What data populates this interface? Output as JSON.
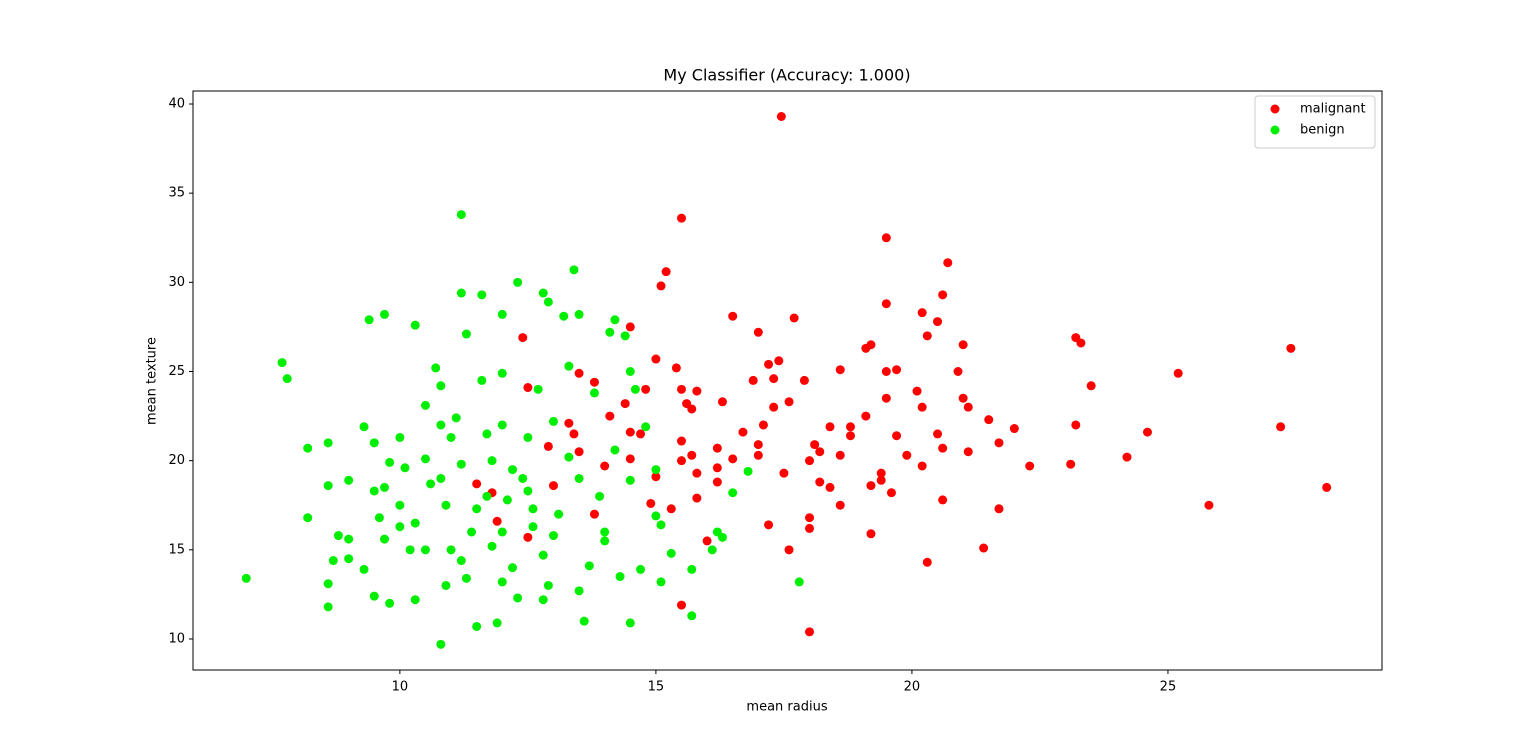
{
  "chart_data": {
    "type": "scatter",
    "title": "My Classifier (Accuracy: 1.000)",
    "x_label": "mean radius",
    "y_label": "mean texture",
    "xlim": [
      5.96,
      29.18
    ],
    "ylim": [
      8.26,
      40.73
    ],
    "xticks": [
      10,
      15,
      20,
      25
    ],
    "yticks": [
      10,
      15,
      20,
      25,
      30,
      35,
      40
    ],
    "legend": "upper right",
    "series": [
      {
        "name": "malignant",
        "color": "#ff0000",
        "x": [
          17.45,
          15.5,
          19.5,
          20.7,
          15.2,
          15.1,
          20.6,
          19.5,
          20.2,
          16.5,
          17.7,
          20.5,
          14.5,
          17.0,
          20.3,
          12.4,
          23.2,
          23.3,
          21.0,
          19.2,
          19.1,
          27.4,
          17.4,
          17.2,
          15.0,
          15.4,
          18.6,
          19.7,
          19.5,
          20.9,
          25.2,
          13.5,
          17.3,
          16.9,
          17.9,
          13.8,
          23.5,
          12.5,
          15.5,
          14.8,
          15.8,
          20.1,
          21.0,
          19.5,
          17.6,
          16.3,
          15.6,
          14.4,
          17.3,
          15.7,
          21.1,
          20.2,
          14.1,
          19.1,
          21.5,
          13.3,
          17.1,
          18.4,
          22.0,
          23.2,
          27.2,
          18.8,
          20.5,
          19.7,
          16.7,
          18.8,
          14.5,
          14.7,
          24.6,
          13.4,
          21.7,
          17.0,
          15.5,
          12.9,
          18.1,
          18.2,
          16.2,
          20.6,
          13.5,
          21.1,
          19.9,
          17.0,
          15.7,
          24.2,
          18.6,
          16.5,
          18.0,
          15.5,
          20.2,
          22.3,
          23.1,
          16.2,
          15.8,
          17.5,
          19.4,
          15.0,
          19.4,
          18.2,
          16.2,
          19.2,
          18.4,
          11.5,
          28.1,
          19.6,
          11.8,
          15.8,
          20.6,
          18.6,
          25.8,
          15.3,
          21.7,
          18.0,
          17.2,
          11.9,
          18.0,
          19.2,
          16.0,
          17.6,
          21.4,
          20.3,
          15.5,
          18.0,
          12.5,
          13.0,
          14.9,
          13.8,
          14.5,
          14.0
        ],
        "values": [
          39.3,
          33.6,
          32.5,
          31.1,
          30.6,
          29.8,
          29.3,
          28.8,
          28.3,
          28.1,
          28.0,
          27.8,
          27.5,
          27.2,
          27.0,
          26.9,
          26.9,
          26.6,
          26.5,
          26.5,
          26.3,
          26.3,
          25.6,
          25.4,
          25.7,
          25.2,
          25.1,
          25.1,
          25.0,
          25.0,
          24.9,
          24.9,
          24.6,
          24.5,
          24.5,
          24.4,
          24.2,
          24.1,
          24.0,
          24.0,
          23.9,
          23.9,
          23.5,
          23.5,
          23.3,
          23.3,
          23.2,
          23.2,
          23.0,
          22.9,
          23.0,
          23.0,
          22.5,
          22.5,
          22.3,
          22.1,
          22.0,
          21.9,
          21.8,
          22.0,
          21.9,
          21.9,
          21.5,
          21.4,
          21.6,
          21.4,
          21.6,
          21.5,
          21.6,
          21.5,
          21.0,
          20.9,
          21.1,
          20.8,
          20.9,
          20.5,
          20.7,
          20.7,
          20.5,
          20.5,
          20.3,
          20.3,
          20.3,
          20.2,
          20.3,
          20.1,
          20.0,
          20.0,
          19.7,
          19.7,
          19.8,
          19.6,
          19.3,
          19.3,
          19.3,
          19.1,
          18.9,
          18.8,
          18.8,
          18.6,
          18.5,
          18.7,
          18.5,
          18.2,
          18.2,
          17.9,
          17.8,
          17.5,
          17.5,
          17.3,
          17.3,
          16.8,
          16.4,
          16.6,
          16.2,
          15.9,
          15.5,
          15.0,
          15.1,
          14.3,
          11.9,
          10.4,
          15.7,
          18.6,
          17.6,
          17.0,
          20.1,
          19.7
        ]
      },
      {
        "name": "benign",
        "color": "#00ee00",
        "x": [
          7.0,
          7.7,
          7.8,
          8.2,
          8.2,
          8.6,
          8.6,
          8.6,
          8.6,
          8.7,
          8.8,
          9.0,
          9.0,
          9.0,
          9.3,
          9.3,
          9.4,
          9.5,
          9.5,
          9.5,
          9.7,
          9.7,
          9.7,
          9.8,
          9.8,
          10.0,
          10.0,
          10.1,
          10.2,
          10.3,
          10.3,
          10.3,
          10.5,
          10.5,
          10.5,
          10.6,
          10.7,
          10.8,
          10.8,
          10.8,
          10.9,
          10.9,
          11.0,
          11.1,
          11.2,
          11.2,
          11.2,
          11.3,
          11.3,
          11.4,
          11.5,
          11.6,
          11.6,
          11.7,
          11.7,
          11.8,
          11.9,
          12.0,
          12.0,
          12.0,
          12.1,
          12.2,
          12.3,
          12.3,
          12.4,
          12.5,
          12.6,
          12.7,
          12.8,
          12.8,
          12.9,
          12.9,
          13.0,
          13.1,
          13.2,
          13.3,
          13.4,
          13.5,
          13.5,
          13.6,
          13.7,
          13.8,
          13.9,
          14.0,
          14.1,
          14.2,
          14.3,
          14.4,
          14.5,
          14.5,
          14.6,
          14.7,
          14.8,
          15.0,
          15.1,
          15.1,
          15.3,
          15.7,
          15.7,
          16.1,
          16.2,
          16.3,
          16.5,
          16.8,
          17.8,
          12.0,
          11.5,
          12.5,
          13.0,
          12.2,
          11.0,
          13.5,
          10.0,
          14.0,
          12.8,
          11.8,
          13.3,
          12.6,
          11.2,
          14.5,
          9.6,
          10.8,
          15.0,
          14.2,
          12.0
        ],
        "values": [
          13.4,
          25.5,
          24.6,
          20.7,
          16.8,
          21.0,
          18.6,
          13.1,
          11.8,
          14.4,
          15.8,
          15.6,
          14.5,
          18.9,
          13.9,
          21.9,
          27.9,
          21.0,
          18.3,
          12.4,
          28.2,
          18.5,
          15.6,
          12.0,
          19.9,
          21.3,
          17.5,
          19.6,
          15.0,
          27.6,
          16.5,
          12.2,
          23.1,
          20.1,
          15.0,
          18.7,
          25.2,
          22.0,
          24.2,
          9.7,
          13.0,
          17.5,
          21.3,
          22.4,
          33.8,
          29.4,
          19.8,
          27.1,
          13.4,
          16.0,
          10.7,
          24.5,
          29.3,
          18.0,
          21.5,
          15.2,
          10.9,
          28.2,
          24.9,
          22.0,
          17.8,
          14.0,
          30.0,
          12.3,
          19.0,
          21.3,
          16.3,
          24.0,
          29.4,
          12.2,
          28.9,
          13.0,
          22.2,
          17.0,
          28.1,
          25.3,
          30.7,
          28.2,
          12.7,
          11.0,
          14.1,
          23.8,
          18.0,
          15.5,
          27.2,
          27.9,
          13.5,
          27.0,
          25.0,
          10.9,
          24.0,
          13.9,
          21.9,
          16.9,
          13.2,
          16.4,
          14.8,
          13.9,
          11.3,
          15.0,
          16.0,
          15.7,
          18.2,
          19.4,
          13.2,
          16.0,
          17.3,
          18.3,
          15.8,
          19.5,
          15.0,
          19.0,
          16.3,
          16.0,
          14.7,
          20.0,
          20.2,
          17.3,
          14.4,
          18.9,
          16.8,
          19.0,
          19.5,
          20.6,
          13.2
        ]
      }
    ]
  }
}
